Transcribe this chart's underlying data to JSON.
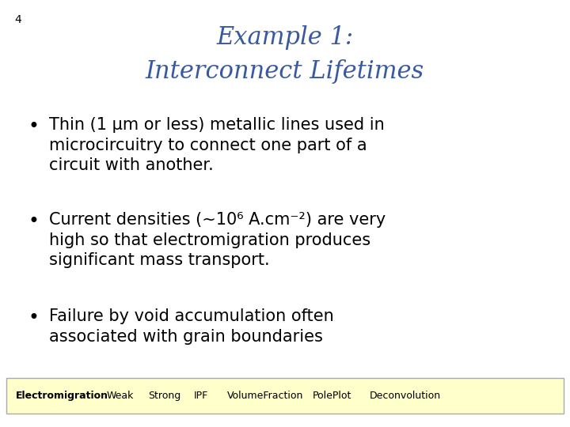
{
  "slide_number": "4",
  "title_line1": "Example 1:",
  "title_line2": "Interconnect Lifetimes",
  "title_color": "#3A5AA0",
  "background_color": "#FFFFFF",
  "slide_number_color": "#000000",
  "bullet_points": [
    "Thin (1 μm or less) metallic lines used in\nmicrocircuitry to connect one part of a\ncircuit with another.",
    "Current densities (~10⁶ A.cm⁻²) are very\nhigh so that electromigration produces\nsignificant mass transport.",
    "Failure by void accumulation often\nassociated with grain boundaries"
  ],
  "bullet_color": "#000000",
  "footer_bg": "#FFFFCC",
  "footer_border": "#AAAAAA",
  "footer_items": [
    "Electromigration",
    "Weak",
    "Strong",
    "IPF",
    "VolumeFraction",
    "PolePlot",
    "Deconvolution"
  ],
  "footer_bold_item": "Electromigration",
  "title_fontsize": 22,
  "bullet_fontsize": 15,
  "slide_number_fontsize": 10
}
